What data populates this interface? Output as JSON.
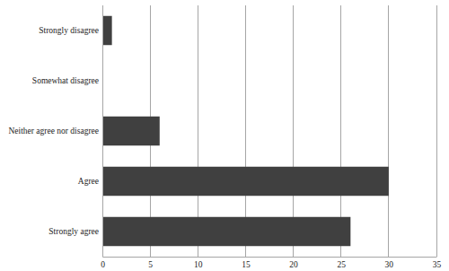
{
  "chart_data": {
    "type": "bar",
    "orientation": "horizontal",
    "categories": [
      "Strongly disagree",
      "Somewhat disagree",
      "Neither agree nor disagree",
      "Agree",
      "Strongly agree"
    ],
    "values": [
      1,
      0,
      6,
      30,
      26
    ],
    "color": "#404040",
    "xlim": [
      0,
      35
    ],
    "xticks": [
      0,
      5,
      10,
      15,
      20,
      25,
      30,
      35
    ],
    "grid": true
  }
}
